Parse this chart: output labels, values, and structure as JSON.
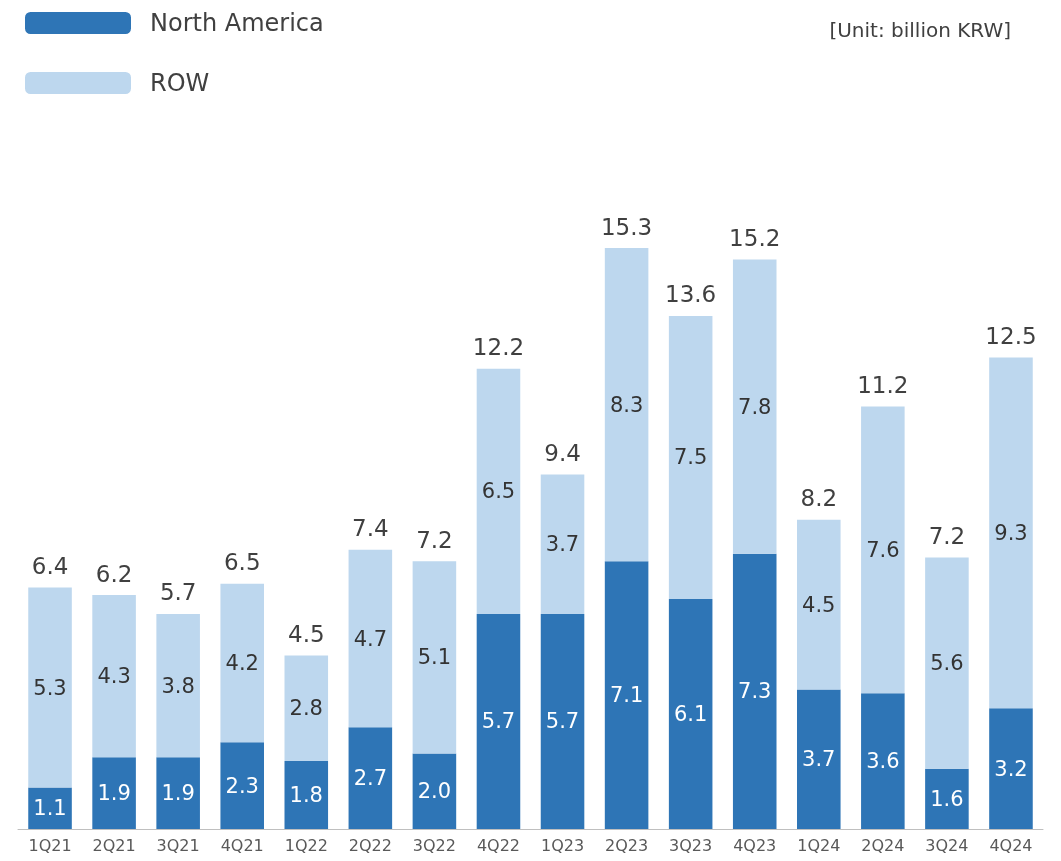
{
  "chart_data": {
    "type": "bar",
    "stacked": true,
    "legend": "top left",
    "annotations": [
      "[Unit: billion KRW]"
    ],
    "categories": [
      "1Q21",
      "2Q21",
      "3Q21",
      "4Q21",
      "1Q22",
      "2Q22",
      "3Q22",
      "4Q22",
      "1Q23",
      "2Q23",
      "3Q23",
      "4Q23",
      "1Q24",
      "2Q24",
      "3Q24",
      "4Q24"
    ],
    "series": [
      {
        "name": "North America",
        "color": "#2e75b6",
        "values": [
          1.1,
          1.9,
          1.9,
          2.3,
          1.8,
          2.7,
          2.0,
          5.7,
          5.7,
          7.1,
          6.1,
          7.3,
          3.7,
          3.6,
          1.6,
          3.2
        ],
        "value_labels": [
          "1.1",
          "1.9",
          "1.9",
          "2.3",
          "1.8",
          "2.7",
          "2.0",
          "5.7",
          "5.7",
          "7.1",
          "6.1",
          "7.3",
          "3.7",
          "3.6",
          "1.6",
          "3.2"
        ]
      },
      {
        "name": "ROW",
        "color": "#bdd7ee",
        "values": [
          5.3,
          4.3,
          3.8,
          4.2,
          2.8,
          4.7,
          5.1,
          6.5,
          3.7,
          8.3,
          7.5,
          7.8,
          4.5,
          7.6,
          5.6,
          9.3
        ],
        "value_labels": [
          "5.3",
          "4.3",
          "3.8",
          "4.2",
          "2.8",
          "4.7",
          "5.1",
          "6.5",
          "3.7",
          "8.3",
          "7.5",
          "7.8",
          "4.5",
          "7.6",
          "5.6",
          "9.3"
        ]
      }
    ],
    "totals": [
      "6.4",
      "6.2",
      "5.7",
      "6.5",
      "4.5",
      "7.4",
      "7.2",
      "12.2",
      "9.4",
      "15.3",
      "13.6",
      "15.2",
      "8.2",
      "11.2",
      "7.2",
      "12.5"
    ]
  }
}
